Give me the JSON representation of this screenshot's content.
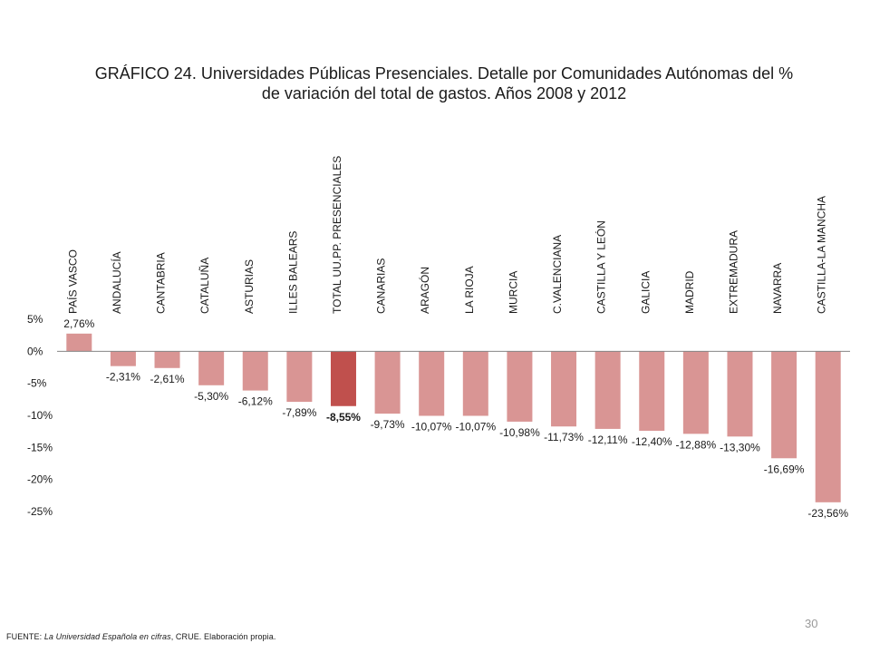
{
  "title_line1": "GRÁFICO 24. Universidades Públicas Presenciales. Detalle por Comunidades Autónomas del %",
  "title_line2": "de variación del total de gastos. Años 2008 y 2012",
  "footer": {
    "label": "FUENTE: ",
    "source_italic": "La Universidad Española en cifras",
    "rest": ", CRUE. Elaboración propia."
  },
  "page_number": "30",
  "colors": {
    "bar": "#d99594",
    "highlight_bar": "#c0504d",
    "axis": "#868686"
  },
  "chart_data": {
    "type": "bar",
    "title": "GRÁFICO 24. Universidades Públicas Presenciales. Detalle por Comunidades Autónomas del % de variación del total de gastos. Años 2008 y 2012",
    "xlabel": "",
    "ylabel": "",
    "ylim": [
      -25,
      5
    ],
    "yticks": [
      5,
      0,
      -5,
      -10,
      -15,
      -20,
      -25
    ],
    "ytick_labels": [
      "5%",
      "0%",
      "-5%",
      "-10%",
      "-15%",
      "-20%",
      "-25%"
    ],
    "grid": false,
    "highlight_index": 6,
    "categories": [
      "PAÍS VASCO",
      "ANDALUCÍA",
      "CANTABRIA",
      "CATALUÑA",
      "ASTURIAS",
      "ILLES BALEARS",
      "TOTAL UU.PP. PRESENCIALES",
      "CANARIAS",
      "ARAGÓN",
      "LA RIOJA",
      "MURCIA",
      "C.VALENCIANA",
      "CASTILLA Y LEÓN",
      "GALICIA",
      "MADRID",
      "EXTREMADURA",
      "NAVARRA",
      "CASTILLA-LA MANCHA"
    ],
    "values": [
      2.76,
      -2.31,
      -2.61,
      -5.3,
      -6.12,
      -7.89,
      -8.55,
      -9.73,
      -10.07,
      -10.07,
      -10.98,
      -11.73,
      -12.11,
      -12.4,
      -12.88,
      -13.3,
      -16.69,
      -23.56
    ],
    "value_labels": [
      "2,76%",
      "-2,31%",
      "-2,61%",
      "-5,30%",
      "-6,12%",
      "-7,89%",
      "-8,55%",
      "-9,73%",
      "-10,07%",
      "-10,07%",
      "-10,98%",
      "-11,73%",
      "-12,11%",
      "-12,40%",
      "-12,88%",
      "-13,30%",
      "-16,69%",
      "-23,56%"
    ]
  }
}
